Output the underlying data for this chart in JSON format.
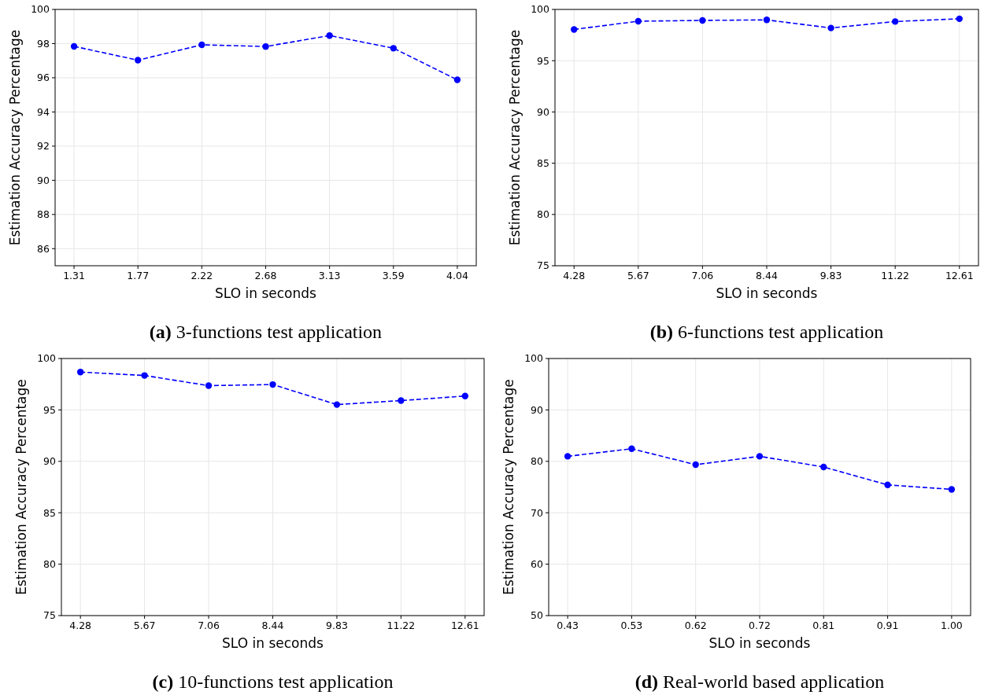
{
  "chart_data": [
    {
      "type": "line",
      "title": "(a) 3-functions test application",
      "xlabel": "SLO in seconds",
      "ylabel": "Estimation Accuracy Percentage",
      "categories": [
        "1.31",
        "1.77",
        "2.22",
        "2.68",
        "3.13",
        "3.59",
        "4.04"
      ],
      "series": [
        {
          "color": "#0000ff",
          "values": [
            97.84,
            97.03,
            97.93,
            97.83,
            98.47,
            97.73,
            95.88
          ]
        }
      ],
      "ylim": [
        85,
        100
      ],
      "yticks": [
        86,
        88,
        90,
        92,
        94,
        96,
        98,
        100
      ],
      "grid": true,
      "marker": "circle",
      "line_style": "dashed"
    },
    {
      "type": "line",
      "title": "(b) 6-functions test application",
      "xlabel": "SLO in seconds",
      "ylabel": "Estimation Accuracy Percentage",
      "categories": [
        "4.28",
        "5.67",
        "7.06",
        "8.44",
        "9.83",
        "11.22",
        "12.61"
      ],
      "series": [
        {
          "color": "#0000ff",
          "values": [
            98.05,
            98.85,
            98.93,
            98.98,
            98.19,
            98.82,
            99.09
          ]
        }
      ],
      "ylim": [
        75,
        100
      ],
      "yticks": [
        75,
        80,
        85,
        90,
        95,
        100
      ],
      "grid": true,
      "marker": "circle",
      "line_style": "dashed"
    },
    {
      "type": "line",
      "title": "(c) 10-functions test application",
      "xlabel": "SLO in seconds",
      "ylabel": "Estimation Accuracy Percentage",
      "categories": [
        "4.28",
        "5.67",
        "7.06",
        "8.44",
        "9.83",
        "11.22",
        "12.61"
      ],
      "series": [
        {
          "color": "#0000ff",
          "values": [
            98.68,
            98.35,
            97.36,
            97.47,
            95.52,
            95.91,
            96.35
          ]
        }
      ],
      "ylim": [
        75,
        100
      ],
      "yticks": [
        75,
        80,
        85,
        90,
        95,
        100
      ],
      "grid": true,
      "marker": "circle",
      "line_style": "dashed"
    },
    {
      "type": "line",
      "title": "(d) Real-world based application",
      "xlabel": "SLO in seconds",
      "ylabel": "Estimation Accuracy Percentage",
      "categories": [
        "0.43",
        "0.53",
        "0.62",
        "0.72",
        "0.81",
        "0.91",
        "1.00"
      ],
      "series": [
        {
          "color": "#0000ff",
          "values": [
            80.98,
            82.45,
            79.35,
            80.98,
            78.9,
            75.42,
            74.55
          ]
        }
      ],
      "ylim": [
        50,
        100
      ],
      "yticks": [
        50,
        60,
        70,
        80,
        90,
        100
      ],
      "grid": true,
      "marker": "circle",
      "line_style": "dashed"
    }
  ]
}
